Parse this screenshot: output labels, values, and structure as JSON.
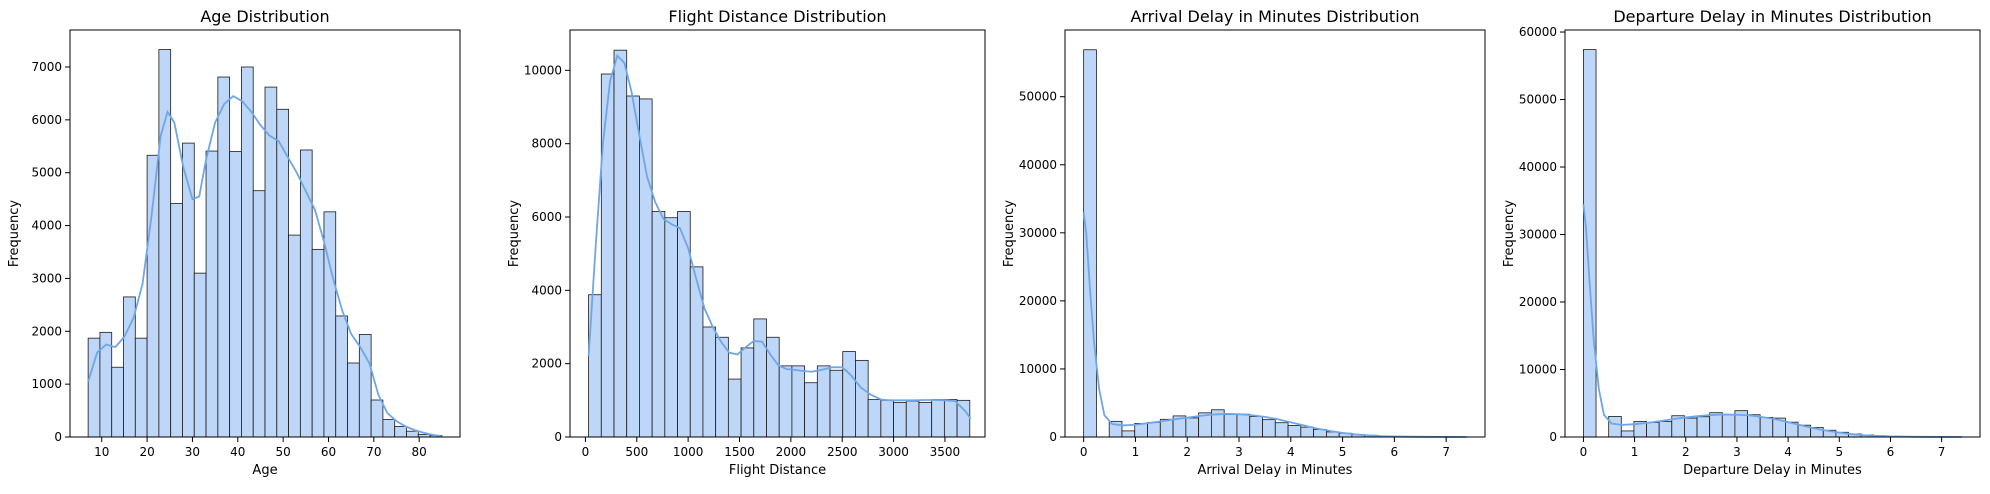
{
  "chart_data": [
    {
      "type": "bar",
      "title": "Age Distribution",
      "xlabel": "Age",
      "ylabel": "Frequency",
      "xlim": [
        3,
        89
      ],
      "ylim": [
        0,
        7700
      ],
      "xticks": [
        10,
        20,
        30,
        40,
        50,
        60,
        70,
        80
      ],
      "yticks": [
        0,
        1000,
        2000,
        3000,
        4000,
        5000,
        6000,
        7000
      ],
      "bin_start": 7,
      "bin_width": 2.6,
      "values": [
        1870,
        1980,
        1320,
        2650,
        1870,
        5330,
        7330,
        4420,
        5560,
        3100,
        5410,
        6810,
        5400,
        7000,
        4660,
        6620,
        6200,
        3820,
        5430,
        3550,
        4260,
        2290,
        1400,
        1940,
        700,
        330,
        200,
        110,
        50,
        30
      ],
      "kde": [
        [
          7,
          1050
        ],
        [
          9,
          1600
        ],
        [
          11,
          1750
        ],
        [
          13,
          1700
        ],
        [
          15,
          1900
        ],
        [
          17,
          2250
        ],
        [
          19,
          2900
        ],
        [
          21,
          4200
        ],
        [
          23,
          5700
        ],
        [
          24.5,
          6150
        ],
        [
          26,
          5950
        ],
        [
          28,
          5100
        ],
        [
          30,
          4500
        ],
        [
          31.5,
          4550
        ],
        [
          33,
          5250
        ],
        [
          35,
          5950
        ],
        [
          37,
          6300
        ],
        [
          39,
          6450
        ],
        [
          41,
          6350
        ],
        [
          43,
          6150
        ],
        [
          45,
          5900
        ],
        [
          47,
          5700
        ],
        [
          49,
          5600
        ],
        [
          51,
          5300
        ],
        [
          53,
          5000
        ],
        [
          55,
          4650
        ],
        [
          57,
          4300
        ],
        [
          59,
          3700
        ],
        [
          61,
          3000
        ],
        [
          63,
          2400
        ],
        [
          65,
          1950
        ],
        [
          67,
          1700
        ],
        [
          69,
          1400
        ],
        [
          71,
          800
        ],
        [
          73,
          450
        ],
        [
          75,
          300
        ],
        [
          77,
          200
        ],
        [
          79,
          130
        ],
        [
          81,
          80
        ],
        [
          83,
          40
        ],
        [
          85,
          15
        ]
      ]
    },
    {
      "type": "bar",
      "title": "Flight Distance Distribution",
      "xlabel": "Flight Distance",
      "ylabel": "Frequency",
      "xlim": [
        -150,
        3890
      ],
      "ylim": [
        0,
        11100
      ],
      "xticks": [
        0,
        500,
        1000,
        1500,
        2000,
        2500,
        3000,
        3500
      ],
      "yticks": [
        0,
        2000,
        4000,
        6000,
        8000,
        10000
      ],
      "bin_start": 31,
      "bin_width": 123.7,
      "values": [
        3880,
        9900,
        10550,
        9300,
        9220,
        6150,
        5980,
        6150,
        4640,
        3000,
        2720,
        1580,
        2430,
        3220,
        2720,
        1940,
        1940,
        1480,
        1940,
        1820,
        2330,
        2090,
        1020,
        1000,
        940,
        980,
        940,
        1020,
        1020,
        1000
      ],
      "kde": [
        [
          31,
          2200
        ],
        [
          100,
          5200
        ],
        [
          170,
          8000
        ],
        [
          240,
          9700
        ],
        [
          310,
          10400
        ],
        [
          380,
          10200
        ],
        [
          450,
          9400
        ],
        [
          520,
          8300
        ],
        [
          600,
          7100
        ],
        [
          680,
          6400
        ],
        [
          760,
          5950
        ],
        [
          840,
          5800
        ],
        [
          920,
          5700
        ],
        [
          1000,
          5150
        ],
        [
          1080,
          4300
        ],
        [
          1160,
          3500
        ],
        [
          1240,
          3000
        ],
        [
          1320,
          2600
        ],
        [
          1400,
          2300
        ],
        [
          1480,
          2250
        ],
        [
          1560,
          2450
        ],
        [
          1640,
          2620
        ],
        [
          1720,
          2600
        ],
        [
          1800,
          2250
        ],
        [
          1880,
          1950
        ],
        [
          1960,
          1850
        ],
        [
          2040,
          1830
        ],
        [
          2120,
          1800
        ],
        [
          2200,
          1780
        ],
        [
          2300,
          1830
        ],
        [
          2400,
          1900
        ],
        [
          2500,
          1900
        ],
        [
          2580,
          1700
        ],
        [
          2680,
          1350
        ],
        [
          2780,
          1150
        ],
        [
          2880,
          1020
        ],
        [
          2980,
          1000
        ],
        [
          3100,
          1000
        ],
        [
          3200,
          1000
        ],
        [
          3300,
          1010
        ],
        [
          3400,
          1010
        ],
        [
          3500,
          1000
        ],
        [
          3600,
          980
        ],
        [
          3700,
          700
        ],
        [
          3750,
          500
        ]
      ]
    },
    {
      "type": "bar",
      "title": "Arrival Delay in Minutes Distribution",
      "xlabel": "Arrival Delay in Minutes",
      "ylabel": "Frequency",
      "xlim": [
        -0.36,
        7.75
      ],
      "ylim": [
        0,
        59800
      ],
      "xticks": [
        0,
        1,
        2,
        3,
        4,
        5,
        6,
        7
      ],
      "yticks": [
        0,
        10000,
        20000,
        30000,
        40000,
        50000
      ],
      "bin_start": 0,
      "bin_width": 0.2467,
      "values": [
        56900,
        0,
        2300,
        900,
        2000,
        2150,
        2600,
        3100,
        2800,
        3550,
        4000,
        3300,
        3350,
        3000,
        2550,
        2100,
        1700,
        1450,
        1100,
        750,
        550,
        350,
        250,
        150,
        100,
        60,
        40,
        25,
        15,
        10
      ],
      "kde": [
        [
          0,
          33000
        ],
        [
          0.05,
          30000
        ],
        [
          0.12,
          22000
        ],
        [
          0.2,
          14000
        ],
        [
          0.3,
          7000
        ],
        [
          0.4,
          3200
        ],
        [
          0.55,
          1900
        ],
        [
          0.75,
          1700
        ],
        [
          1.0,
          1800
        ],
        [
          1.25,
          2050
        ],
        [
          1.5,
          2300
        ],
        [
          1.75,
          2600
        ],
        [
          2.0,
          2850
        ],
        [
          2.25,
          3100
        ],
        [
          2.5,
          3300
        ],
        [
          2.75,
          3400
        ],
        [
          3.0,
          3350
        ],
        [
          3.25,
          3200
        ],
        [
          3.5,
          2950
        ],
        [
          3.75,
          2600
        ],
        [
          4.0,
          2150
        ],
        [
          4.25,
          1700
        ],
        [
          4.5,
          1250
        ],
        [
          4.75,
          900
        ],
        [
          5.0,
          600
        ],
        [
          5.25,
          380
        ],
        [
          5.5,
          230
        ],
        [
          5.75,
          130
        ],
        [
          6.0,
          70
        ],
        [
          6.5,
          25
        ],
        [
          7.0,
          8
        ],
        [
          7.4,
          3
        ]
      ]
    },
    {
      "type": "bar",
      "title": "Departure Delay in Minutes Distribution",
      "xlabel": "Departure Delay in Minutes",
      "ylabel": "Frequency",
      "xlim": [
        -0.36,
        7.75
      ],
      "ylim": [
        0,
        60300
      ],
      "xticks": [
        0,
        1,
        2,
        3,
        4,
        5,
        6,
        7
      ],
      "yticks": [
        0,
        10000,
        20000,
        30000,
        40000,
        50000,
        60000
      ],
      "bin_start": 0,
      "bin_width": 0.2467,
      "values": [
        57400,
        0,
        3050,
        900,
        2300,
        2150,
        2300,
        3150,
        2800,
        3000,
        3600,
        3300,
        3900,
        3300,
        2900,
        2800,
        2200,
        1750,
        1400,
        1000,
        700,
        450,
        300,
        180,
        100,
        60,
        40,
        25,
        15,
        10
      ],
      "kde": [
        [
          0,
          34500
        ],
        [
          0.05,
          31000
        ],
        [
          0.12,
          23000
        ],
        [
          0.2,
          14500
        ],
        [
          0.3,
          7200
        ],
        [
          0.4,
          3300
        ],
        [
          0.55,
          2000
        ],
        [
          0.75,
          1800
        ],
        [
          1.0,
          1900
        ],
        [
          1.25,
          2100
        ],
        [
          1.5,
          2350
        ],
        [
          1.75,
          2650
        ],
        [
          2.0,
          2900
        ],
        [
          2.25,
          3100
        ],
        [
          2.5,
          3250
        ],
        [
          2.75,
          3350
        ],
        [
          3.0,
          3300
        ],
        [
          3.25,
          3200
        ],
        [
          3.5,
          2950
        ],
        [
          3.75,
          2650
        ],
        [
          4.0,
          2200
        ],
        [
          4.25,
          1750
        ],
        [
          4.5,
          1300
        ],
        [
          4.75,
          950
        ],
        [
          5.0,
          650
        ],
        [
          5.25,
          420
        ],
        [
          5.5,
          260
        ],
        [
          5.75,
          150
        ],
        [
          6.0,
          80
        ],
        [
          6.5,
          28
        ],
        [
          7.0,
          10
        ],
        [
          7.4,
          3
        ]
      ]
    }
  ]
}
